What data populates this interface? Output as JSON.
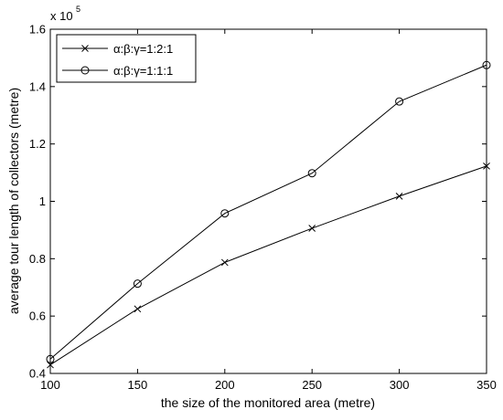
{
  "chart_data": {
    "type": "line",
    "title": "",
    "xlabel": "the size of the monitored area (metre)",
    "ylabel": "average tour length of collectors (metre)",
    "y_multiplier_base": "x 10",
    "y_multiplier_exp": "5",
    "xlim": [
      100,
      350
    ],
    "ylim": [
      0.4,
      1.6
    ],
    "x_ticks": [
      100,
      150,
      200,
      250,
      300,
      350
    ],
    "x_tick_labels": [
      "100",
      "150",
      "200",
      "250",
      "300",
      "350"
    ],
    "y_ticks": [
      0.4,
      0.6,
      0.8,
      1.0,
      1.2,
      1.4,
      1.6
    ],
    "y_tick_labels": [
      "0.4",
      "0.6",
      "0.8",
      "1",
      "1.2",
      "1.4",
      "1.6"
    ],
    "grid": false,
    "legend_position": "top-left",
    "x": [
      100,
      150,
      200,
      250,
      300,
      350
    ],
    "series": [
      {
        "name": "α:β:γ=1:2:1",
        "marker": "x",
        "color": "#000000",
        "values": [
          0.43,
          0.625,
          0.787,
          0.906,
          1.018,
          1.123
        ]
      },
      {
        "name": "α:β:γ=1:1:1",
        "marker": "o",
        "color": "#000000",
        "values": [
          0.45,
          0.713,
          0.958,
          1.098,
          1.348,
          1.475
        ]
      }
    ]
  }
}
